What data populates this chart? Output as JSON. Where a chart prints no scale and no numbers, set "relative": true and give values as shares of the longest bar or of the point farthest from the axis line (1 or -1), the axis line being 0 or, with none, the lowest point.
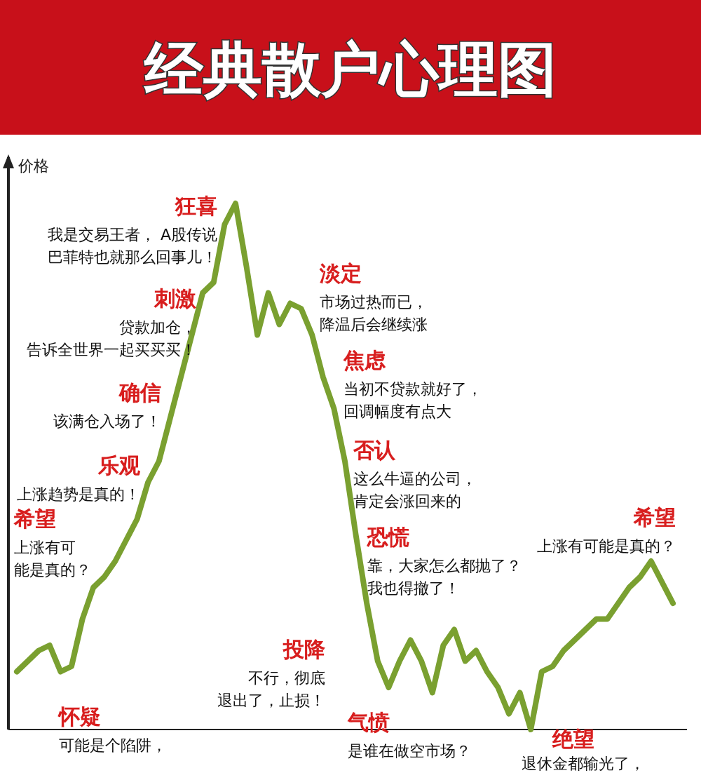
{
  "chart_data": {
    "type": "line",
    "title": "经典散户心理图",
    "ylabel": "价格",
    "relative": true,
    "line_style": "solid",
    "marker": "none",
    "categories": [
      null,
      null,
      null,
      null,
      null,
      null,
      null,
      null,
      null,
      null,
      null,
      null,
      null,
      null,
      null,
      null,
      null,
      null,
      null,
      null,
      null,
      null,
      null,
      null,
      null,
      null,
      null,
      null,
      null,
      null,
      null,
      null,
      null,
      null,
      null,
      null,
      null,
      null,
      null,
      null,
      null,
      null,
      null,
      null,
      null,
      null,
      null,
      null,
      null,
      null,
      null,
      null,
      null,
      null,
      null,
      null,
      null,
      null,
      null,
      null,
      null
    ],
    "series": [
      {
        "color": "#7aa030",
        "values": [
          0.11,
          0.13,
          0.15,
          0.16,
          0.11,
          0.12,
          0.21,
          0.27,
          0.29,
          0.32,
          0.36,
          0.4,
          0.47,
          0.51,
          0.59,
          0.67,
          0.75,
          0.83,
          0.85,
          0.96,
          1,
          0.88,
          0.75,
          0.83,
          0.77,
          0.81,
          0.8,
          0.75,
          0.67,
          0.61,
          0.51,
          0.37,
          0.24,
          0.13,
          0.08,
          0.13,
          0.17,
          0.13,
          0.07,
          0.16,
          0.19,
          0.13,
          0.15,
          0.11,
          0.08,
          0.03,
          0.07,
          0,
          0.11,
          0.12,
          0.15,
          0.17,
          0.19,
          0.21,
          0.21,
          0.24,
          0.27,
          0.29,
          0.32,
          0.28,
          0.24
        ]
      }
    ],
    "annotations": [
      "狂喜",
      "我是交易王者， A股传说巴菲特也就那么回事儿！",
      "刺激",
      "贷款加仓，告诉全世界一起买买买！",
      "确信",
      "该满仓入场了！",
      "乐观",
      "上涨趋势是真的！",
      "希望",
      "上涨有可能是真的？",
      "怀疑",
      "可能是个陷阱，",
      "投降",
      "不行，彻底退出了，止损！",
      "淡定",
      "市场过热而已，降温后会继续涨",
      "焦虑",
      "当初不贷款就好了，回调幅度有点大",
      "否认",
      "这么牛逼的公司，肯定会涨回来的",
      "恐慌",
      "靠，大家怎么都抛了？我也得撤了！",
      "希望",
      "上涨有可能是真的？",
      "气愤",
      "是谁在做空市场？",
      "绝望",
      "退休金都输光了，"
    ]
  }
}
